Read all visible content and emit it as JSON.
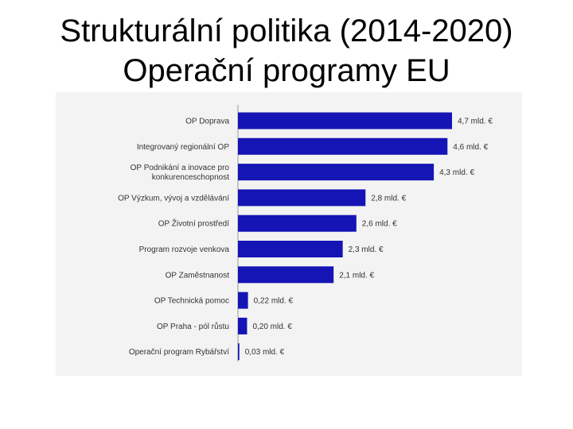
{
  "slide": {
    "title_line1": "Strukturální politika (2014-2020)",
    "title_line2": "Operační programy EU"
  },
  "chart_data": {
    "type": "bar",
    "orientation": "horizontal",
    "title": "",
    "xlabel": "",
    "ylabel": "",
    "bar_color": "#1515b5",
    "xlim": [
      0,
      4.7
    ],
    "grid": false,
    "legend": "none",
    "categories": [
      [
        "OP Doprava"
      ],
      [
        "Integrovaný regionální OP"
      ],
      [
        "OP Podnikání a inovace pro",
        "konkurenceschopnost"
      ],
      [
        "OP Výzkum, vývoj a vzdělávání"
      ],
      [
        "OP Životní prostředí"
      ],
      [
        "Program rozvoje venkova"
      ],
      [
        "OP Zaměstnanost"
      ],
      [
        "OP Technická pomoc"
      ],
      [
        "OP Praha - pól růstu"
      ],
      [
        "Operační program Rybářství"
      ]
    ],
    "values": [
      4.7,
      4.6,
      4.3,
      2.8,
      2.6,
      2.3,
      2.1,
      0.22,
      0.2,
      0.03
    ],
    "value_labels": [
      "4,7 mld. €",
      "4,6 mld. €",
      "4,3 mld. €",
      "2,8 mld. €",
      "2,6 mld. €",
      "2,3 mld. €",
      "2,1 mld. €",
      "0,22 mld. €",
      "0,20 mld. €",
      "0,03 mld. €"
    ]
  }
}
